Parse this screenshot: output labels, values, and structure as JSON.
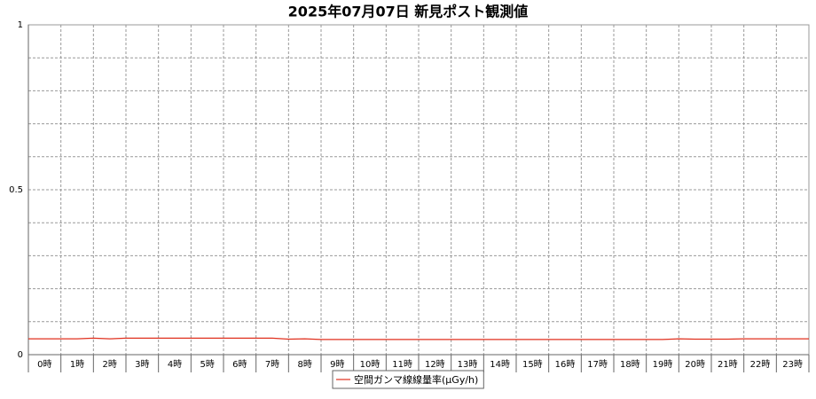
{
  "chart_data": {
    "type": "line",
    "title": "2025年07月07日 新見ポスト観測値",
    "categories": [
      "0時",
      "1時",
      "2時",
      "3時",
      "4時",
      "5時",
      "6時",
      "7時",
      "8時",
      "9時",
      "10時",
      "11時",
      "12時",
      "13時",
      "14時",
      "15時",
      "16時",
      "17時",
      "18時",
      "19時",
      "20時",
      "21時",
      "22時",
      "23時"
    ],
    "x": [
      0,
      0.5,
      1,
      1.5,
      2,
      2.5,
      3,
      3.5,
      4,
      4.5,
      5,
      5.5,
      6,
      6.5,
      7,
      7.5,
      8,
      8.5,
      9,
      9.5,
      10,
      10.5,
      11,
      11.5,
      12,
      12.5,
      13,
      13.5,
      14,
      14.5,
      15,
      15.5,
      16,
      16.5,
      17,
      17.5,
      18,
      18.5,
      19,
      19.5,
      20,
      20.5,
      21,
      21.5,
      22,
      22.5,
      23,
      23.5,
      24
    ],
    "xlim": [
      0,
      24
    ],
    "xticks": [
      0,
      1,
      2,
      3,
      4,
      5,
      6,
      7,
      8,
      9,
      10,
      11,
      12,
      13,
      14,
      15,
      16,
      17,
      18,
      19,
      20,
      21,
      22,
      23,
      24
    ],
    "series": [
      {
        "name": "空間ガンマ線線量率(μGy/h)",
        "color": "#e0301e",
        "values": [
          0.048,
          0.048,
          0.048,
          0.048,
          0.05,
          0.048,
          0.05,
          0.05,
          0.05,
          0.05,
          0.05,
          0.05,
          0.05,
          0.05,
          0.05,
          0.05,
          0.047,
          0.048,
          0.046,
          0.046,
          0.046,
          0.046,
          0.046,
          0.046,
          0.046,
          0.046,
          0.046,
          0.046,
          0.046,
          0.046,
          0.046,
          0.046,
          0.046,
          0.046,
          0.046,
          0.046,
          0.046,
          0.046,
          0.046,
          0.046,
          0.048,
          0.047,
          0.047,
          0.047,
          0.048,
          0.048,
          0.048,
          0.048,
          0.048
        ]
      }
    ],
    "ylim": [
      0,
      1
    ],
    "yticks": [
      0,
      0.5,
      1
    ],
    "minor_yticks": [
      0.1,
      0.2,
      0.3,
      0.4,
      0.6,
      0.7,
      0.8,
      0.9
    ],
    "grid": true,
    "legend": "bottom"
  }
}
